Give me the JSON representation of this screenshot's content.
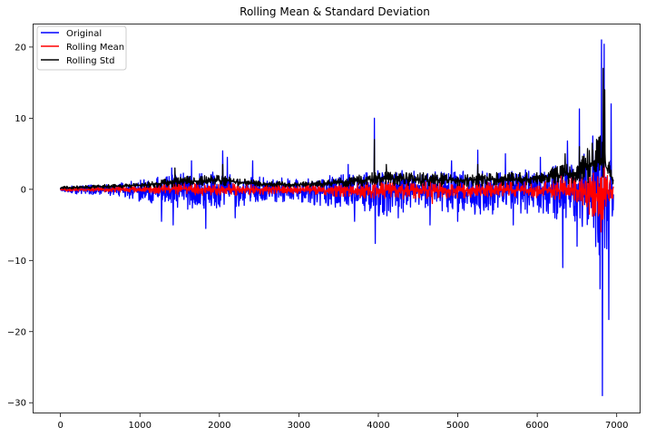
{
  "chart_data": {
    "type": "line",
    "title": "Rolling Mean & Standard Deviation",
    "xlabel": "",
    "ylabel": "",
    "xlim": [
      -350,
      7300
    ],
    "ylim": [
      -31.5,
      23.3
    ],
    "xticks": [
      0,
      1000,
      2000,
      3000,
      4000,
      5000,
      6000,
      7000
    ],
    "xtick_labels": [
      "0",
      "1000",
      "2000",
      "3000",
      "4000",
      "5000",
      "6000",
      "7000"
    ],
    "yticks": [
      20,
      10,
      0,
      -10,
      -20,
      -30
    ],
    "ytick_labels": [
      "20",
      "10",
      "0",
      "−10",
      "−20",
      "−30"
    ],
    "n_points": 6960,
    "legend_position": "upper-left",
    "series": [
      {
        "name": "Original",
        "color": "#0000ff",
        "envelope": [
          {
            "x": 0,
            "hi": 0.4,
            "lo": -0.6
          },
          {
            "x": 700,
            "hi": 0.8,
            "lo": -0.9
          },
          {
            "x": 1100,
            "hi": 1.5,
            "lo": -2.0
          },
          {
            "x": 1500,
            "hi": 2.5,
            "lo": -3.0
          },
          {
            "x": 2000,
            "hi": 2.5,
            "lo": -3.0
          },
          {
            "x": 2500,
            "hi": 1.8,
            "lo": -2.0
          },
          {
            "x": 3000,
            "hi": 1.5,
            "lo": -1.8
          },
          {
            "x": 3600,
            "hi": 2.2,
            "lo": -3.0
          },
          {
            "x": 4000,
            "hi": 3.0,
            "lo": -4.0
          },
          {
            "x": 4500,
            "hi": 2.5,
            "lo": -3.0
          },
          {
            "x": 5000,
            "hi": 2.5,
            "lo": -3.5
          },
          {
            "x": 5500,
            "hi": 2.8,
            "lo": -3.5
          },
          {
            "x": 6000,
            "hi": 3.0,
            "lo": -3.5
          },
          {
            "x": 6400,
            "hi": 4.0,
            "lo": -5.0
          },
          {
            "x": 6700,
            "hi": 6.0,
            "lo": -7.0
          },
          {
            "x": 6850,
            "hi": 10.0,
            "lo": -12.0
          },
          {
            "x": 6960,
            "hi": 3.0,
            "lo": -4.0
          }
        ],
        "spikes": [
          {
            "x": 1270,
            "y": -4.5
          },
          {
            "x": 1400,
            "y": 3.0
          },
          {
            "x": 1420,
            "y": -5.0
          },
          {
            "x": 1650,
            "y": 4.0
          },
          {
            "x": 1830,
            "y": -5.5
          },
          {
            "x": 2040,
            "y": 5.4
          },
          {
            "x": 2100,
            "y": 4.5
          },
          {
            "x": 2200,
            "y": -4.0
          },
          {
            "x": 2420,
            "y": 4.0
          },
          {
            "x": 3620,
            "y": 3.5
          },
          {
            "x": 3700,
            "y": -4.5
          },
          {
            "x": 3950,
            "y": 10.0
          },
          {
            "x": 3960,
            "y": -7.6
          },
          {
            "x": 4250,
            "y": -4.0
          },
          {
            "x": 4650,
            "y": -5.0
          },
          {
            "x": 4920,
            "y": 4.0
          },
          {
            "x": 5000,
            "y": -4.5
          },
          {
            "x": 5250,
            "y": 5.5
          },
          {
            "x": 5600,
            "y": 5.0
          },
          {
            "x": 5700,
            "y": -5.0
          },
          {
            "x": 6040,
            "y": 4.5
          },
          {
            "x": 6320,
            "y": -11.0
          },
          {
            "x": 6380,
            "y": 6.8
          },
          {
            "x": 6500,
            "y": -8.0
          },
          {
            "x": 6530,
            "y": 11.3
          },
          {
            "x": 6700,
            "y": 7.5
          },
          {
            "x": 6790,
            "y": -14.0
          },
          {
            "x": 6810,
            "y": 21.0
          },
          {
            "x": 6820,
            "y": -29.0
          },
          {
            "x": 6840,
            "y": 20.4
          },
          {
            "x": 6900,
            "y": -18.3
          },
          {
            "x": 6930,
            "y": 12.0
          }
        ]
      },
      {
        "name": "Rolling Mean",
        "color": "#ff0000",
        "envelope": [
          {
            "x": 0,
            "hi": 0.15,
            "lo": -0.25
          },
          {
            "x": 1000,
            "hi": 0.5,
            "lo": -0.5
          },
          {
            "x": 1500,
            "hi": 0.9,
            "lo": -0.8
          },
          {
            "x": 2000,
            "hi": 0.9,
            "lo": -0.9
          },
          {
            "x": 3000,
            "hi": 0.5,
            "lo": -0.6
          },
          {
            "x": 4000,
            "hi": 1.2,
            "lo": -1.5
          },
          {
            "x": 5000,
            "hi": 1.0,
            "lo": -1.2
          },
          {
            "x": 6000,
            "hi": 1.0,
            "lo": -1.2
          },
          {
            "x": 6500,
            "hi": 1.8,
            "lo": -2.0
          },
          {
            "x": 6800,
            "hi": 3.0,
            "lo": -5.0
          },
          {
            "x": 6960,
            "hi": 1.0,
            "lo": -1.0
          }
        ],
        "spikes": [
          {
            "x": 3950,
            "y": 2.5
          },
          {
            "x": 4680,
            "y": -2.0
          },
          {
            "x": 6300,
            "y": 2.0
          },
          {
            "x": 6800,
            "y": -6.0
          },
          {
            "x": 6840,
            "y": 4.0
          }
        ]
      },
      {
        "name": "Rolling Std",
        "color": "#000000",
        "envelope": [
          {
            "x": 0,
            "hi": 0.4,
            "lo": 0.0
          },
          {
            "x": 1000,
            "hi": 0.9,
            "lo": 0.2
          },
          {
            "x": 1500,
            "hi": 1.8,
            "lo": 0.4
          },
          {
            "x": 2000,
            "hi": 2.0,
            "lo": 0.5
          },
          {
            "x": 2500,
            "hi": 1.2,
            "lo": 0.3
          },
          {
            "x": 3000,
            "hi": 1.0,
            "lo": 0.3
          },
          {
            "x": 3500,
            "hi": 1.5,
            "lo": 0.3
          },
          {
            "x": 4000,
            "hi": 2.5,
            "lo": 0.5
          },
          {
            "x": 5000,
            "hi": 2.2,
            "lo": 0.4
          },
          {
            "x": 6000,
            "hi": 2.5,
            "lo": 0.5
          },
          {
            "x": 6500,
            "hi": 4.0,
            "lo": 0.8
          },
          {
            "x": 6800,
            "hi": 8.0,
            "lo": 1.0
          },
          {
            "x": 6960,
            "hi": 2.0,
            "lo": 0.5
          }
        ],
        "spikes": [
          {
            "x": 1440,
            "y": 3.0
          },
          {
            "x": 2040,
            "y": 3.5
          },
          {
            "x": 3950,
            "y": 7.0
          },
          {
            "x": 4100,
            "y": 3.5
          },
          {
            "x": 5250,
            "y": 3.5
          },
          {
            "x": 6350,
            "y": 5.0
          },
          {
            "x": 6530,
            "y": 6.0
          },
          {
            "x": 6700,
            "y": 5.5
          },
          {
            "x": 6830,
            "y": 17.0
          },
          {
            "x": 6850,
            "y": 14.0
          }
        ]
      }
    ]
  }
}
